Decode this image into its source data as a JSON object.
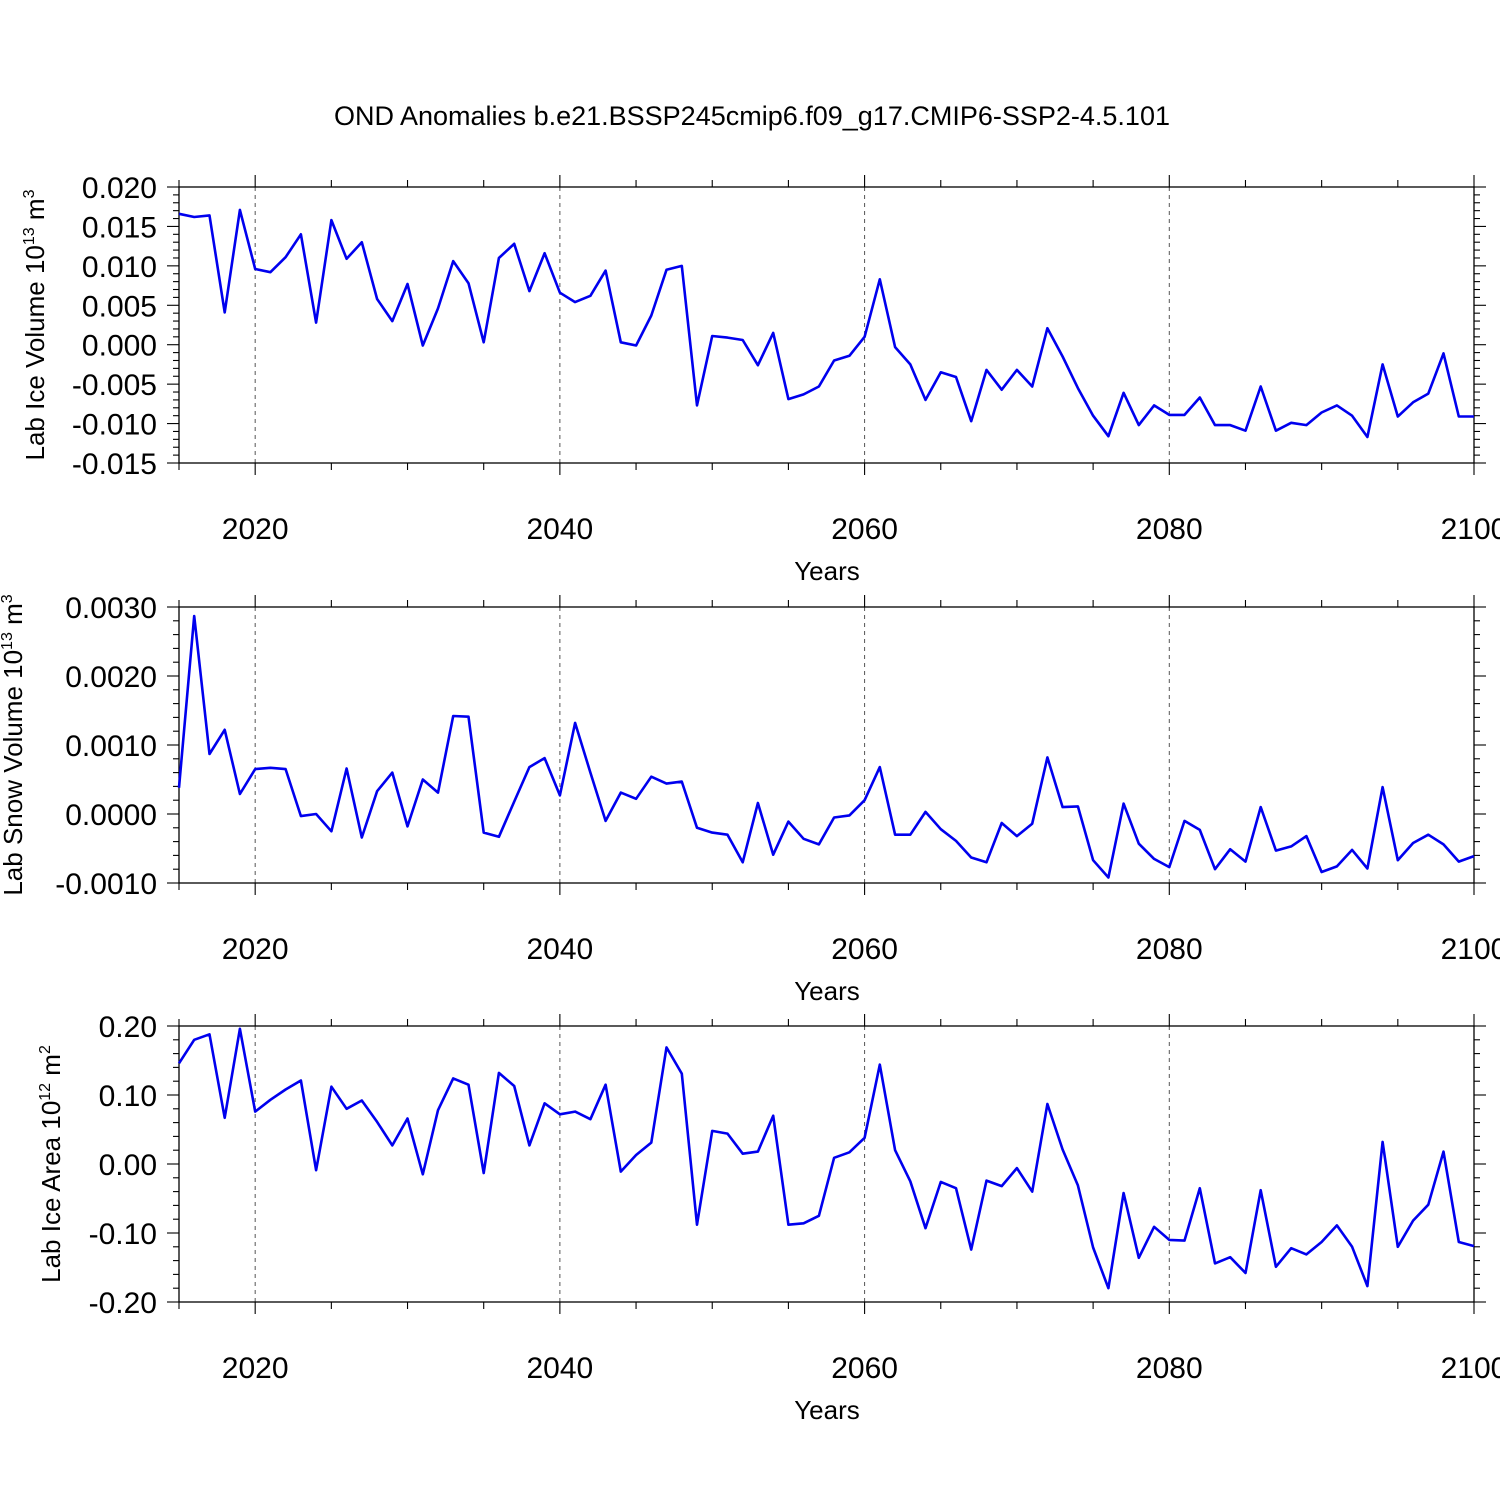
{
  "title": "OND Anomalies b.e21.BSSP245cmip6.f09_g17.CMIP6-SSP2-4.5.101",
  "chart_data": [
    {
      "type": "line",
      "id": "ice-volume",
      "ylabel": {
        "main": "Lab Ice Volume 10",
        "exp": "13",
        "unit": " m",
        "unit_exp": "3"
      },
      "xlabel": "Years",
      "xlim": [
        2015,
        2100
      ],
      "ylim": [
        -0.015,
        0.02
      ],
      "yticks": [
        -0.015,
        -0.01,
        -0.005,
        0.0,
        0.005,
        0.01,
        0.015,
        0.02
      ],
      "ytick_labels": [
        "-0.015",
        "-0.010",
        "-0.005",
        "0.000",
        "0.005",
        "0.010",
        "0.015",
        "0.020"
      ],
      "xticks": [
        2020,
        2040,
        2060,
        2080,
        2100
      ],
      "xtick_labels": [
        "2020",
        "2040",
        "2060",
        "2080",
        "2100"
      ],
      "color": "#0000ee",
      "x_start": 2015,
      "values": [
        0.0166,
        0.0162,
        0.0164,
        0.0041,
        0.0171,
        0.0096,
        0.0092,
        0.0111,
        0.014,
        0.0028,
        0.0158,
        0.0109,
        0.013,
        0.0058,
        0.003,
        0.0077,
        -0.0001,
        0.0046,
        0.0106,
        0.0078,
        0.0003,
        0.011,
        0.0128,
        0.0068,
        0.0116,
        0.0066,
        0.0054,
        0.0062,
        0.0094,
        0.0003,
        -0.0001,
        0.0037,
        0.0095,
        0.01,
        -0.0077,
        0.0011,
        0.0009,
        0.0006,
        -0.0026,
        0.0015,
        -0.0069,
        -0.0063,
        -0.0053,
        -0.002,
        -0.0014,
        0.001,
        0.0083,
        -0.0003,
        -0.0025,
        -0.007,
        -0.0035,
        -0.0041,
        -0.0097,
        -0.0032,
        -0.0057,
        -0.0032,
        -0.0053,
        0.0021,
        -0.0015,
        -0.0055,
        -0.009,
        -0.0116,
        -0.0061,
        -0.0102,
        -0.0077,
        -0.0089,
        -0.0089,
        -0.0067,
        -0.0102,
        -0.0102,
        -0.0109,
        -0.0053,
        -0.0109,
        -0.0099,
        -0.0102,
        -0.0086,
        -0.0077,
        -0.009,
        -0.0117,
        -0.0025,
        -0.0091,
        -0.0073,
        -0.0062,
        -0.0011,
        -0.0091,
        -0.0091
      ]
    },
    {
      "type": "line",
      "id": "snow-volume",
      "ylabel": {
        "main": "Lab Snow Volume 10",
        "exp": "13",
        "unit": " m",
        "unit_exp": "3"
      },
      "xlabel": "Years",
      "xlim": [
        2015,
        2100
      ],
      "ylim": [
        -0.001,
        0.003
      ],
      "yticks": [
        -0.001,
        0.0,
        0.001,
        0.002,
        0.003
      ],
      "ytick_labels": [
        "-0.0010",
        "0.0000",
        "0.0010",
        "0.0020",
        "0.0030"
      ],
      "xticks": [
        2020,
        2040,
        2060,
        2080,
        2100
      ],
      "xtick_labels": [
        "2020",
        "2040",
        "2060",
        "2080",
        "2100"
      ],
      "color": "#0000ee",
      "x_start": 2015,
      "values": [
        0.00038,
        0.00287,
        0.00087,
        0.00122,
        0.00029,
        0.00065,
        0.00067,
        0.00065,
        -3e-05,
        0.0,
        -0.00025,
        0.00066,
        -0.00034,
        0.00033,
        0.0006,
        -0.00018,
        0.0005,
        0.00031,
        0.00142,
        0.00141,
        -0.00027,
        -0.00033,
        0.00018,
        0.00068,
        0.00081,
        0.00027,
        0.00132,
        0.0006,
        -0.0001,
        0.00031,
        0.00022,
        0.00054,
        0.00044,
        0.00047,
        -0.0002,
        -0.00027,
        -0.0003,
        -0.0007,
        0.00016,
        -0.00059,
        -0.00011,
        -0.00036,
        -0.00044,
        -5e-05,
        -2e-05,
        0.0002,
        0.00068,
        -0.0003,
        -0.0003,
        3e-05,
        -0.00022,
        -0.00039,
        -0.00063,
        -0.0007,
        -0.00013,
        -0.00032,
        -0.00014,
        0.00082,
        0.0001,
        0.00011,
        -0.00067,
        -0.00092,
        0.00015,
        -0.00043,
        -0.00065,
        -0.00077,
        -0.0001,
        -0.00023,
        -0.0008,
        -0.00051,
        -0.00069,
        0.0001,
        -0.00053,
        -0.00047,
        -0.00032,
        -0.00084,
        -0.00076,
        -0.00052,
        -0.00079,
        0.00039,
        -0.00067,
        -0.00042,
        -0.0003,
        -0.00044,
        -0.00069,
        -0.00061
      ]
    },
    {
      "type": "line",
      "id": "ice-area",
      "ylabel": {
        "main": "Lab Ice Area 10",
        "exp": "12",
        "unit": " m",
        "unit_exp": "2"
      },
      "xlabel": "Years",
      "xlim": [
        2015,
        2100
      ],
      "ylim": [
        -0.2,
        0.2
      ],
      "yticks": [
        -0.2,
        -0.1,
        0.0,
        0.1,
        0.2
      ],
      "ytick_labels": [
        "-0.20",
        "-0.10",
        "0.00",
        "0.10",
        "0.20"
      ],
      "xticks": [
        2020,
        2040,
        2060,
        2080,
        2100
      ],
      "xtick_labels": [
        "2020",
        "2040",
        "2060",
        "2080",
        "2100"
      ],
      "color": "#0000ee",
      "x_start": 2015,
      "values": [
        0.146,
        0.18,
        0.188,
        0.067,
        0.196,
        0.076,
        0.093,
        0.108,
        0.121,
        -0.009,
        0.112,
        0.08,
        0.092,
        0.061,
        0.027,
        0.066,
        -0.015,
        0.078,
        0.124,
        0.115,
        -0.013,
        0.132,
        0.113,
        0.027,
        0.088,
        0.072,
        0.076,
        0.065,
        0.115,
        -0.011,
        0.013,
        0.031,
        0.169,
        0.131,
        -0.088,
        0.048,
        0.044,
        0.015,
        0.018,
        0.07,
        -0.088,
        -0.086,
        -0.075,
        0.009,
        0.017,
        0.038,
        0.144,
        0.02,
        -0.025,
        -0.093,
        -0.026,
        -0.035,
        -0.124,
        -0.024,
        -0.032,
        -0.006,
        -0.04,
        0.087,
        0.021,
        -0.031,
        -0.121,
        -0.18,
        -0.042,
        -0.136,
        -0.091,
        -0.11,
        -0.111,
        -0.035,
        -0.144,
        -0.135,
        -0.158,
        -0.038,
        -0.149,
        -0.122,
        -0.131,
        -0.113,
        -0.089,
        -0.12,
        -0.177,
        0.032,
        -0.12,
        -0.082,
        -0.059,
        0.018,
        -0.113,
        -0.119
      ]
    }
  ]
}
